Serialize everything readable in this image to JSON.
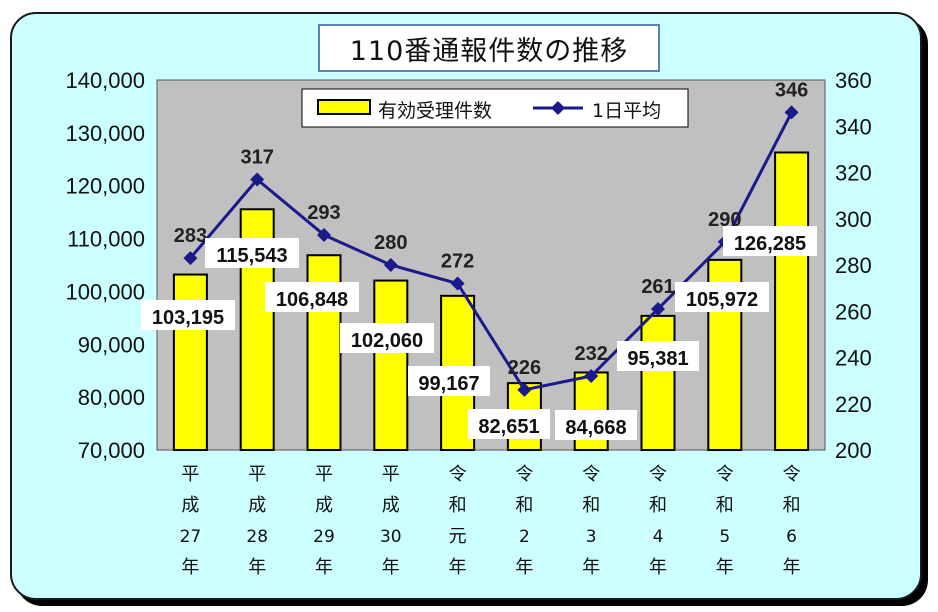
{
  "chart_data": {
    "type": "bar+line",
    "title": "110番通報件数の推移",
    "categories": [
      [
        "平",
        "成",
        "27",
        "年"
      ],
      [
        "平",
        "成",
        "28",
        "年"
      ],
      [
        "平",
        "成",
        "29",
        "年"
      ],
      [
        "平",
        "成",
        "30",
        "年"
      ],
      [
        "令",
        "和",
        "元",
        "年"
      ],
      [
        "令",
        "和",
        "2",
        "年"
      ],
      [
        "令",
        "和",
        "3",
        "年"
      ],
      [
        "令",
        "和",
        "4",
        "年"
      ],
      [
        "令",
        "和",
        "5",
        "年"
      ],
      [
        "令",
        "和",
        "6",
        "年"
      ]
    ],
    "series": [
      {
        "name": "有効受理件数",
        "type": "bar",
        "axis": "left",
        "values": [
          103195,
          115543,
          106848,
          102060,
          99167,
          82651,
          84668,
          95381,
          105972,
          126285
        ],
        "labels": [
          "103,195",
          "115,543",
          "106,848",
          "102,060",
          "99,167",
          "82,651",
          "84,668",
          "95,381",
          "105,972",
          "126,285"
        ]
      },
      {
        "name": "1日平均",
        "type": "line",
        "axis": "right",
        "values": [
          283,
          317,
          293,
          280,
          272,
          226,
          232,
          261,
          290,
          346
        ],
        "labels": [
          "283",
          "317",
          "293",
          "280",
          "272",
          "226",
          "232",
          "261",
          "290",
          "346"
        ]
      }
    ],
    "y_left": {
      "range": [
        70000,
        140000
      ],
      "ticks": [
        "70,000",
        "80,000",
        "90,000",
        "100,000",
        "110,000",
        "120,000",
        "130,000",
        "140,000"
      ]
    },
    "y_right": {
      "range": [
        200,
        360
      ],
      "ticks": [
        "200",
        "220",
        "240",
        "260",
        "280",
        "300",
        "320",
        "340",
        "360"
      ]
    },
    "legend": {
      "placement": "top-center"
    },
    "grid": false,
    "colors": {
      "panel_bg": "#ccffff",
      "plot_bg": "#c0c0c0",
      "bar_fill": "#ffff00",
      "line": "#1a1a8c",
      "title_border": "#5b7fb5"
    }
  }
}
